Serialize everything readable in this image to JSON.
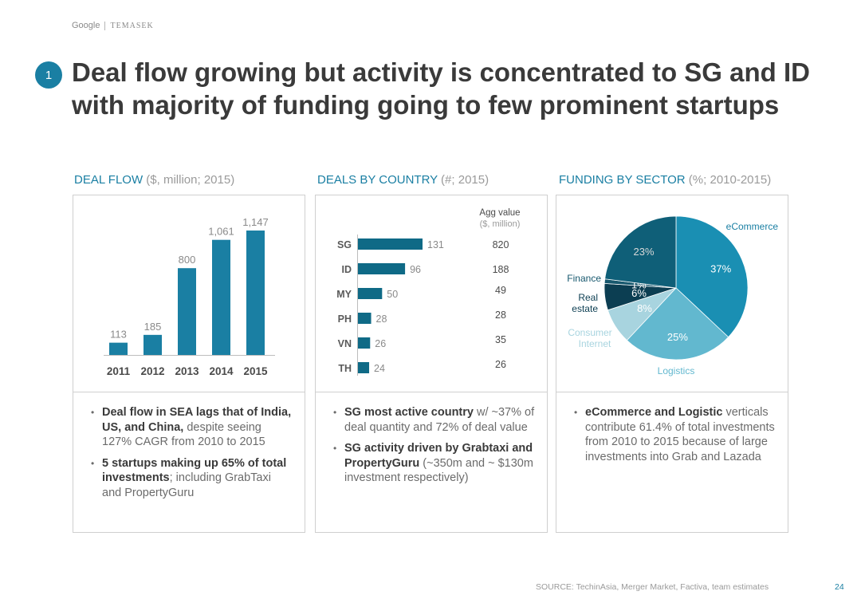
{
  "brand": {
    "left": "Google",
    "right": "TEMASEK"
  },
  "badge_number": "1",
  "title_line1": "Deal flow growing but activity is concentrated to SG and ID",
  "title_line2": "with majority of funding going to few prominent startups",
  "sections": [
    {
      "title": "DEAL FLOW",
      "sub": " ($, million; 2015)"
    },
    {
      "title": "DEALS BY COUNTRY",
      "sub": " (#; 2015)"
    },
    {
      "title": "FUNDING BY SECTOR",
      "sub": " (%; 2010-2015)"
    }
  ],
  "colors": {
    "accent": "#1a7fa3",
    "dark": "#0f5f78",
    "mid": "#2a8fb0",
    "light": "#6bbdd1",
    "pale": "#a8d4df"
  },
  "chart_data": [
    {
      "type": "bar",
      "title": "DEAL FLOW",
      "subtitle": "($, million; 2015)",
      "categories": [
        "2011",
        "2012",
        "2013",
        "2014",
        "2015"
      ],
      "values": [
        113,
        185,
        800,
        1061,
        1147
      ],
      "value_labels": [
        "113",
        "185",
        "800",
        "1,061",
        "1,147"
      ],
      "ylim": [
        0,
        1250
      ]
    },
    {
      "type": "bar",
      "orientation": "horizontal",
      "title": "DEALS BY COUNTRY",
      "subtitle": "(#; 2015)",
      "categories": [
        "SG",
        "ID",
        "MY",
        "PH",
        "VN",
        "TH"
      ],
      "values": [
        131,
        96,
        50,
        28,
        26,
        24
      ],
      "agg_value_header": [
        "Agg value",
        "($, million)"
      ],
      "agg_values": [
        "820",
        "188",
        "49",
        "28",
        "35",
        "26"
      ],
      "xlim": [
        0,
        140
      ]
    },
    {
      "type": "pie",
      "title": "FUNDING BY SECTOR",
      "subtitle": "(%; 2010-2015)",
      "slices": [
        {
          "name": "eCommerce",
          "value": 37,
          "label": "37%",
          "color": "#1a8fb3"
        },
        {
          "name": "Logistics",
          "value": 25,
          "label": "25%",
          "color": "#62b8cf"
        },
        {
          "name": "Consumer Internet",
          "value": 8,
          "label": "8%",
          "color": "#a8d4df"
        },
        {
          "name": "Real estate",
          "value": 6,
          "label": "6%",
          "color": "#0c3e52"
        },
        {
          "name": "Finance",
          "value": 1,
          "label": "1%",
          "color": "#17586e"
        },
        {
          "name": "",
          "value": 23,
          "label": "23%",
          "color": "#0f5f78"
        }
      ],
      "legend_labels": {
        "ecommerce": "eCommerce",
        "finance": "Finance",
        "real_estate_1": "Real",
        "real_estate_2": "estate",
        "consumer_1": "Consumer",
        "consumer_2": "Internet",
        "logistics": "Logistics"
      }
    }
  ],
  "bullets": {
    "deal_flow": [
      {
        "bold": "Deal flow in SEA lags that of India, US, and China,",
        "rest": " despite seeing 127% CAGR from 2010 to 2015"
      },
      {
        "bold": "5 startups making up 65% of total investments",
        "rest": "; including GrabTaxi and PropertyGuru"
      }
    ],
    "country": [
      {
        "bold": "SG most active country",
        "rest": " w/ ~37% of deal quantity and 72% of deal value"
      },
      {
        "bold": "SG activity driven by Grabtaxi and PropertyGuru",
        "rest": " (~350m and ~ $130m investment respectively)"
      }
    ],
    "sector": [
      {
        "bold": "eCommerce and Logistic",
        "rest": " verticals contribute 61.4% of total investments from 2010 to 2015 because of large investments into Grab and Lazada"
      }
    ]
  },
  "source": "SOURCE: TechinAsia, Merger Market, Factiva, team estimates",
  "page_number": "24"
}
